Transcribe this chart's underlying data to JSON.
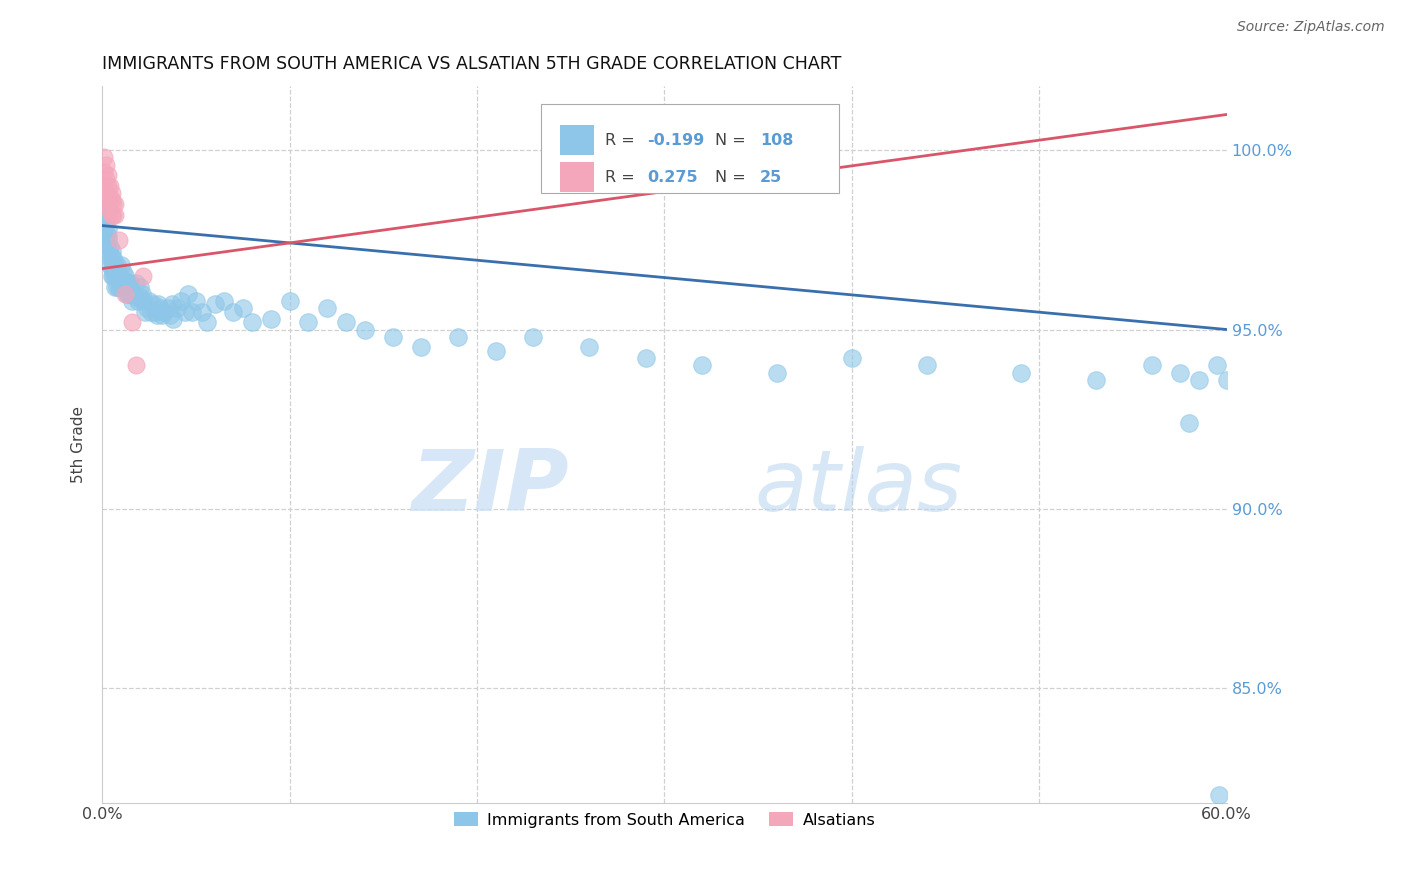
{
  "title": "IMMIGRANTS FROM SOUTH AMERICA VS ALSATIAN 5TH GRADE CORRELATION CHART",
  "source": "Source: ZipAtlas.com",
  "ylabel": "5th Grade",
  "legend_label_blue": "Immigrants from South America",
  "legend_label_pink": "Alsatians",
  "watermark_zip": "ZIP",
  "watermark_atlas": "atlas",
  "blue_R": -0.199,
  "blue_N": 108,
  "pink_R": 0.275,
  "pink_N": 25,
  "blue_color": "#8dc6e8",
  "pink_color": "#f4a7bb",
  "blue_line_color": "#3a6fad",
  "pink_line_color": "#d9566a",
  "x_range": [
    0.0,
    0.6
  ],
  "y_range": [
    0.818,
    1.018
  ],
  "ytick_vals": [
    0.85,
    0.9,
    0.95,
    1.0
  ],
  "ytick_labels": [
    "85.0%",
    "90.0%",
    "95.0%",
    "100.0%"
  ],
  "xtick_vals": [
    0.0,
    0.1,
    0.2,
    0.3,
    0.4,
    0.5,
    0.6
  ],
  "xtick_labels": [
    "0.0%",
    "",
    "",
    "",
    "",
    "",
    "60.0%"
  ],
  "blue_x": [
    0.001,
    0.001,
    0.001,
    0.002,
    0.002,
    0.002,
    0.002,
    0.003,
    0.003,
    0.003,
    0.003,
    0.004,
    0.004,
    0.004,
    0.005,
    0.005,
    0.005,
    0.005,
    0.006,
    0.006,
    0.006,
    0.007,
    0.007,
    0.007,
    0.008,
    0.008,
    0.008,
    0.009,
    0.009,
    0.01,
    0.01,
    0.01,
    0.011,
    0.011,
    0.012,
    0.012,
    0.013,
    0.013,
    0.014,
    0.014,
    0.015,
    0.015,
    0.016,
    0.016,
    0.017,
    0.018,
    0.018,
    0.019,
    0.02,
    0.02,
    0.021,
    0.022,
    0.023,
    0.024,
    0.025,
    0.026,
    0.027,
    0.028,
    0.029,
    0.03,
    0.031,
    0.032,
    0.033,
    0.035,
    0.036,
    0.037,
    0.038,
    0.04,
    0.042,
    0.044,
    0.046,
    0.048,
    0.05,
    0.053,
    0.056,
    0.06,
    0.065,
    0.07,
    0.075,
    0.08,
    0.09,
    0.1,
    0.11,
    0.12,
    0.13,
    0.14,
    0.155,
    0.17,
    0.19,
    0.21,
    0.23,
    0.26,
    0.29,
    0.32,
    0.36,
    0.4,
    0.44,
    0.49,
    0.53,
    0.56,
    0.575,
    0.585,
    0.595,
    0.6,
    0.61,
    0.62,
    0.58,
    0.596
  ],
  "blue_y": [
    0.982,
    0.979,
    0.976,
    0.984,
    0.98,
    0.977,
    0.974,
    0.978,
    0.975,
    0.972,
    0.976,
    0.973,
    0.97,
    0.968,
    0.972,
    0.97,
    0.967,
    0.965,
    0.97,
    0.968,
    0.965,
    0.968,
    0.965,
    0.962,
    0.968,
    0.965,
    0.962,
    0.965,
    0.962,
    0.968,
    0.965,
    0.962,
    0.966,
    0.963,
    0.965,
    0.962,
    0.963,
    0.96,
    0.963,
    0.96,
    0.963,
    0.96,
    0.96,
    0.958,
    0.96,
    0.963,
    0.959,
    0.958,
    0.962,
    0.959,
    0.96,
    0.958,
    0.955,
    0.956,
    0.958,
    0.955,
    0.957,
    0.955,
    0.954,
    0.957,
    0.956,
    0.954,
    0.955,
    0.956,
    0.954,
    0.957,
    0.953,
    0.956,
    0.958,
    0.955,
    0.96,
    0.955,
    0.958,
    0.955,
    0.952,
    0.957,
    0.958,
    0.955,
    0.956,
    0.952,
    0.953,
    0.958,
    0.952,
    0.956,
    0.952,
    0.95,
    0.948,
    0.945,
    0.948,
    0.944,
    0.948,
    0.945,
    0.942,
    0.94,
    0.938,
    0.942,
    0.94,
    0.938,
    0.936,
    0.94,
    0.938,
    0.936,
    0.94,
    0.936,
    0.938,
    0.942,
    0.924,
    0.82
  ],
  "pink_x": [
    0.001,
    0.001,
    0.001,
    0.002,
    0.002,
    0.002,
    0.002,
    0.003,
    0.003,
    0.003,
    0.004,
    0.004,
    0.004,
    0.005,
    0.005,
    0.005,
    0.006,
    0.006,
    0.007,
    0.007,
    0.009,
    0.012,
    0.016,
    0.018,
    0.022
  ],
  "pink_y": [
    0.998,
    0.994,
    0.99,
    0.996,
    0.992,
    0.988,
    0.985,
    0.993,
    0.99,
    0.986,
    0.99,
    0.987,
    0.983,
    0.988,
    0.986,
    0.982,
    0.985,
    0.982,
    0.985,
    0.982,
    0.975,
    0.96,
    0.952,
    0.94,
    0.965
  ],
  "blue_trendline_x": [
    0.0,
    0.6
  ],
  "blue_trendline_y": [
    0.979,
    0.95
  ],
  "pink_trendline_x": [
    0.0,
    0.6
  ],
  "pink_trendline_y": [
    0.967,
    1.01
  ]
}
